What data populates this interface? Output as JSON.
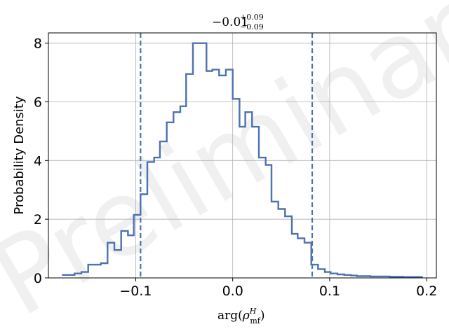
{
  "watermark": "Preliminary",
  "chart_data": {
    "type": "histogram",
    "title": {
      "value": "−0.01",
      "upper": "+0.09",
      "lower": "−0.09"
    },
    "xlabel": {
      "prefix": "arg(",
      "symbol": "ρ",
      "superscript": "H",
      "subscript": "mf",
      "suffix": ")"
    },
    "ylabel": "Probability Density",
    "xlim": [
      -0.19,
      0.21
    ],
    "ylim": [
      0,
      8.35
    ],
    "xticks": [
      -0.1,
      0.0,
      0.1,
      0.2
    ],
    "xtick_labels": [
      "−0.1",
      "0.0",
      "0.1",
      "0.2"
    ],
    "yticks": [
      0,
      2,
      4,
      6,
      8
    ],
    "ytick_labels": [
      "0",
      "2",
      "4",
      "6",
      "8"
    ],
    "grid": true,
    "line_color": "#4c72b0",
    "interval_lines": [
      -0.095,
      0.082
    ],
    "bin_edges": [
      -0.176,
      -0.169,
      -0.163,
      -0.156,
      -0.149,
      -0.142,
      -0.136,
      -0.129,
      -0.122,
      -0.115,
      -0.108,
      -0.102,
      -0.095,
      -0.088,
      -0.081,
      -0.075,
      -0.068,
      -0.061,
      -0.054,
      -0.048,
      -0.041,
      -0.034,
      -0.027,
      -0.021,
      -0.014,
      -0.007,
      0.0,
      0.007,
      0.013,
      0.02,
      0.027,
      0.034,
      0.04,
      0.047,
      0.054,
      0.061,
      0.067,
      0.074,
      0.081,
      0.088,
      0.095,
      0.101,
      0.108,
      0.115,
      0.122,
      0.128,
      0.135,
      0.142,
      0.149,
      0.155,
      0.162,
      0.169,
      0.176,
      0.183,
      0.189,
      0.196
    ],
    "densities": [
      0.1,
      0.1,
      0.15,
      0.2,
      0.45,
      0.45,
      0.5,
      1.2,
      0.95,
      1.6,
      1.45,
      2.15,
      2.85,
      3.95,
      4.1,
      4.65,
      5.3,
      5.65,
      5.85,
      6.95,
      8.0,
      8.0,
      7.05,
      7.1,
      6.9,
      7.1,
      6.1,
      5.15,
      5.65,
      5.15,
      4.1,
      3.85,
      2.6,
      2.35,
      2.1,
      1.5,
      1.35,
      1.2,
      0.45,
      0.3,
      0.2,
      0.15,
      0.12,
      0.1,
      0.08,
      0.06,
      0.06,
      0.05,
      0.05,
      0.05,
      0.04,
      0.04,
      0.03,
      0.03,
      0.03
    ]
  }
}
